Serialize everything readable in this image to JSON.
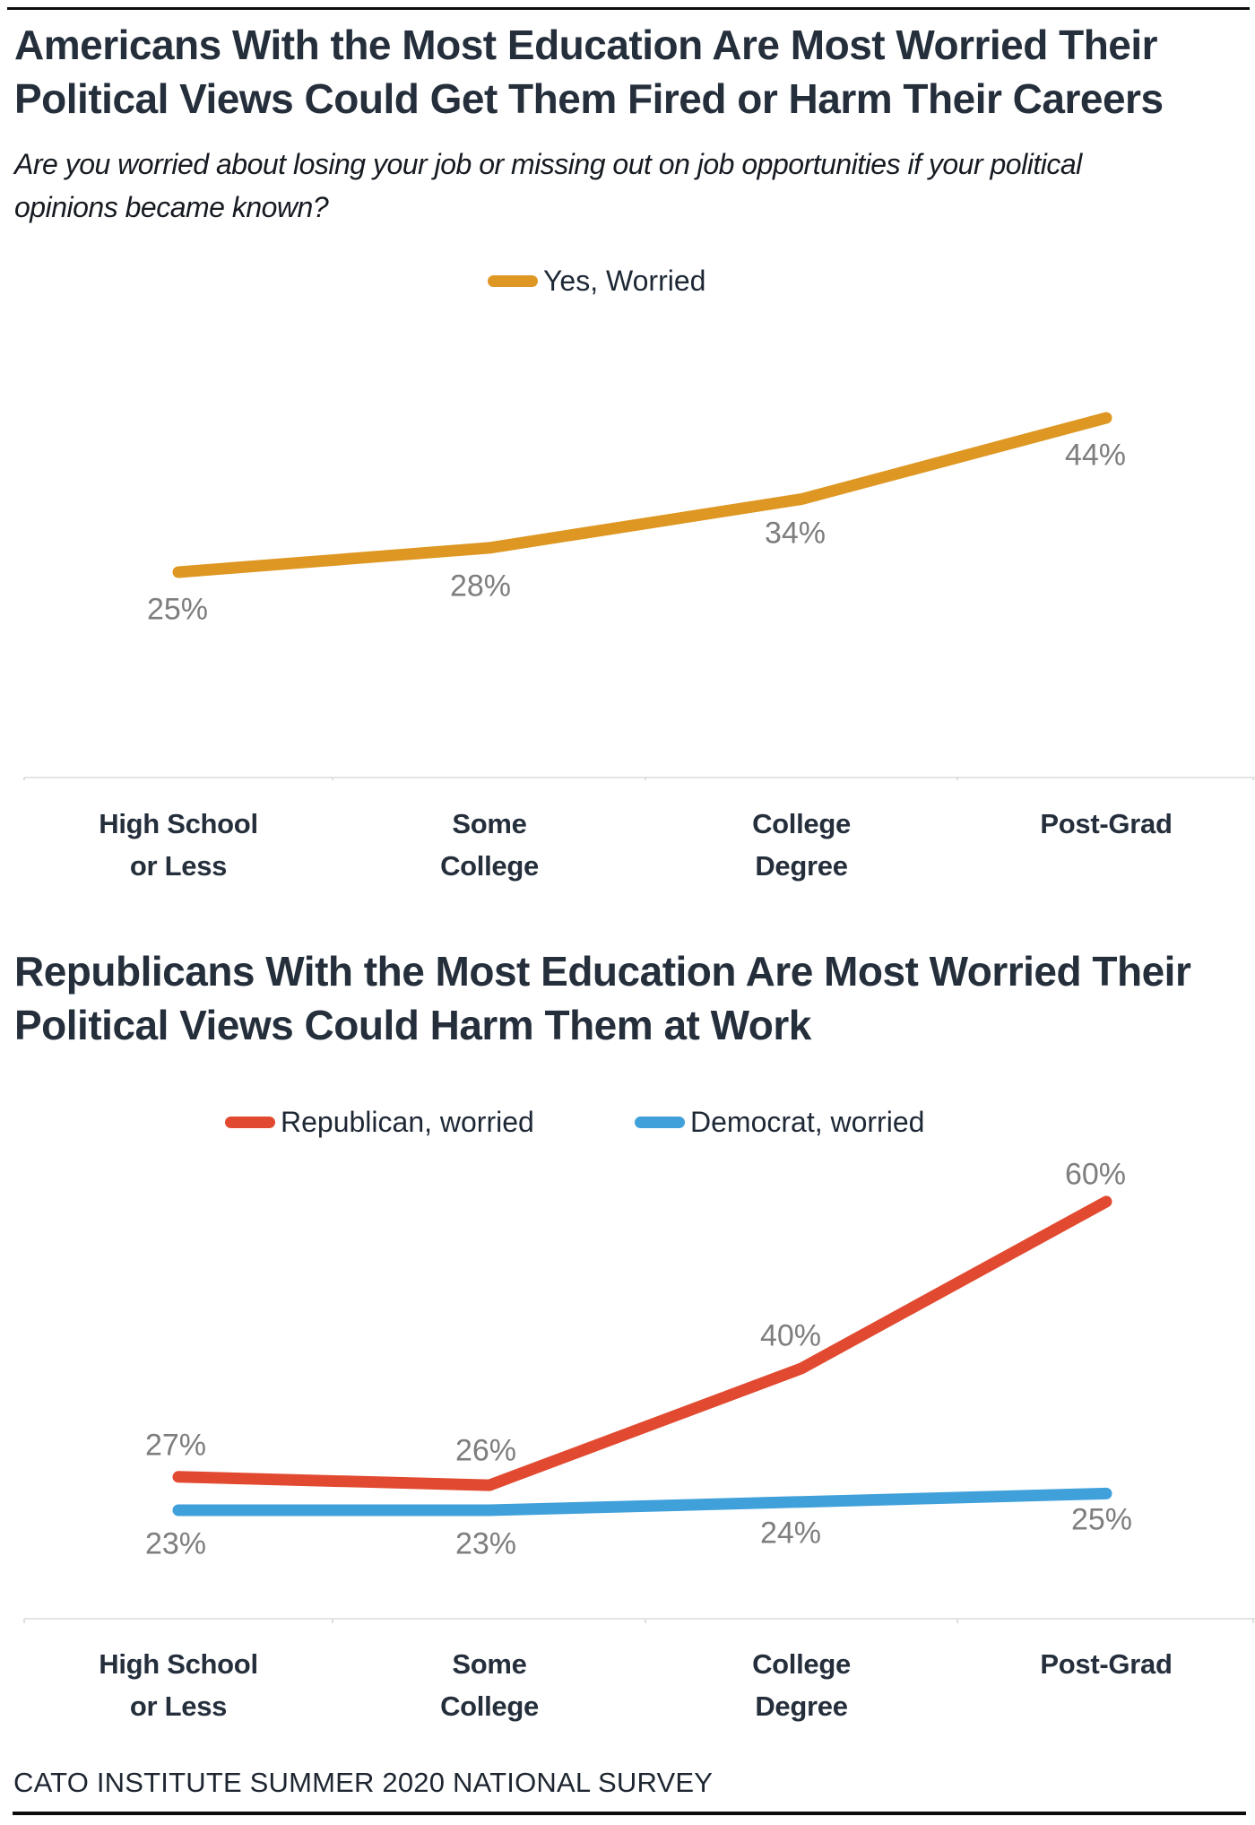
{
  "footer": "CATO INSTITUTE SUMMER 2020 NATIONAL SURVEY",
  "chart_data": [
    {
      "type": "line",
      "title": "Americans With the Most Education Are Most Worried Their Political Views Could Get Them Fired or Harm Their Careers",
      "title_lines": [
        "Americans With the Most Education Are Most Worried Their",
        "Political Views Could Get Them Fired or Harm Their Careers"
      ],
      "subtitle": "Are you worried about losing your job or missing out on job opportunities if your political opinions became known?",
      "subtitle_lines": [
        "Are you worried about losing your job or missing out on job opportunities if your political",
        "opinions became known?"
      ],
      "categories": [
        [
          "High School",
          "or Less"
        ],
        [
          "Some",
          "College"
        ],
        [
          "College",
          "Degree"
        ],
        [
          "Post-Grad"
        ]
      ],
      "series": [
        {
          "name": "Yes, Worried",
          "color": "#DE9722",
          "values": [
            25,
            28,
            34,
            44
          ],
          "label_position": "below"
        }
      ],
      "value_suffix": "%",
      "xlabel": "",
      "ylabel": "",
      "ylim": [
        20,
        50
      ],
      "grid": false,
      "y_axis_visible": false,
      "data_labels": true,
      "data_label_color": "#7e7e7e",
      "legend_position": "top-center"
    },
    {
      "type": "line",
      "title": "Republicans With the Most Education Are Most Worried Their Political Views Could Harm Them at Work",
      "title_lines": [
        "Republicans With the Most Education Are Most Worried Their",
        "Political Views Could Harm Them at Work"
      ],
      "categories": [
        [
          "High School",
          "or Less"
        ],
        [
          "Some",
          "College"
        ],
        [
          "College",
          "Degree"
        ],
        [
          "Post-Grad"
        ]
      ],
      "series": [
        {
          "name": "Republican, worried",
          "color": "#E14A30",
          "values": [
            27,
            26,
            40,
            60
          ],
          "label_position": "above"
        },
        {
          "name": "Democrat, worried",
          "color": "#3FA0DA",
          "values": [
            23,
            23,
            24,
            25
          ],
          "label_position": "below"
        }
      ],
      "value_suffix": "%",
      "xlabel": "",
      "ylabel": "",
      "ylim": [
        18,
        65
      ],
      "grid": false,
      "y_axis_visible": false,
      "data_labels": true,
      "data_label_color": "#7e7e7e",
      "legend_position": "top-center"
    }
  ],
  "axis": {
    "line_color": "#e4e4e4",
    "tick_color": "#dedede"
  }
}
